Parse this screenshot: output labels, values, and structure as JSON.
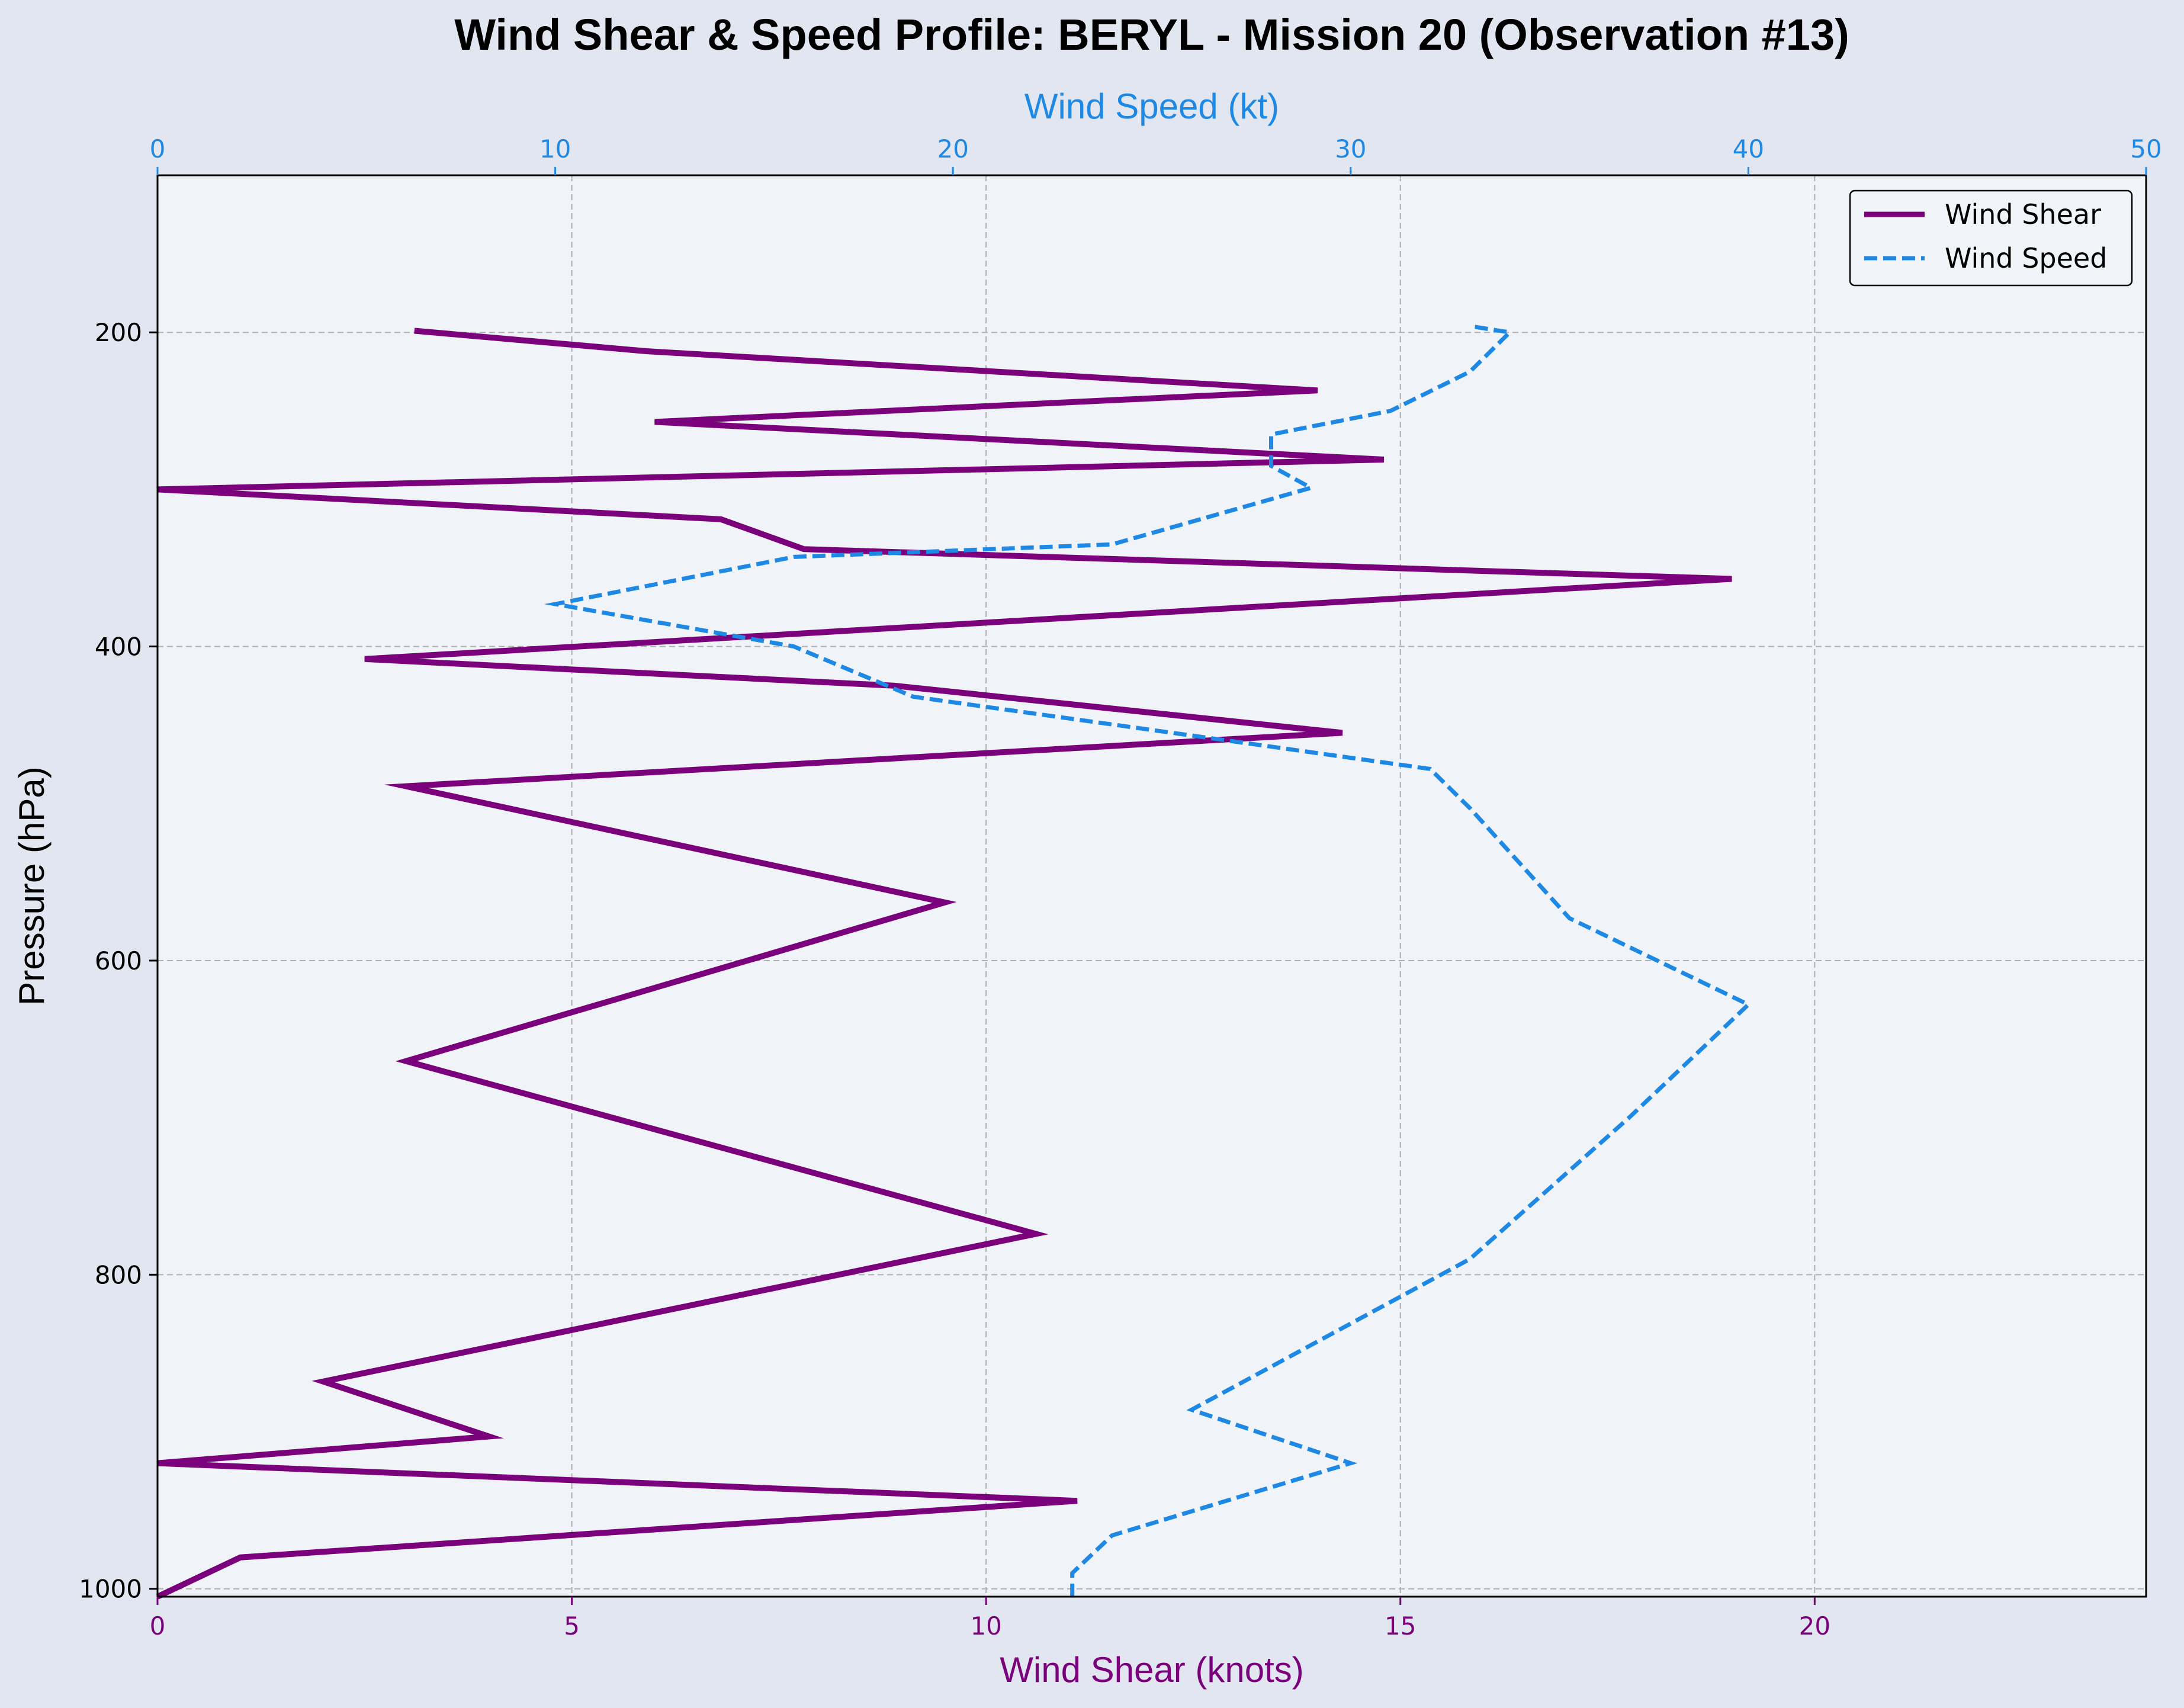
{
  "chart_data": {
    "type": "line",
    "title": "Wind Shear & Speed Profile: BERYL - Mission 20 (Observation #13)",
    "xlabel_bottom": "Wind Shear (knots)",
    "xlabel_top": "Wind Speed (kt)",
    "ylabel": "Pressure (hPa)",
    "xlim_bottom": [
      0,
      24
    ],
    "xlim_top": [
      0,
      50
    ],
    "ylim": [
      1005,
      100
    ],
    "y_inverted": true,
    "grid": true,
    "legend_position": "top-right",
    "x_bottom_ticks": [
      "0",
      "5",
      "10",
      "15",
      "20"
    ],
    "x_top_ticks": [
      "0",
      "10",
      "20",
      "30",
      "40",
      "50"
    ],
    "y_ticks": [
      "200",
      "400",
      "600",
      "800",
      "1000"
    ],
    "colors": {
      "background": "#e1e6f0",
      "plot_background": "#f0f3f8",
      "shear": "#7b007b",
      "speed": "#1e88e5",
      "grid": "#b0b0b0"
    },
    "series": [
      {
        "name": "Wind Shear",
        "axis": "bottom",
        "style": "solid",
        "points": [
          {
            "x": 0.0,
            "y": 1005
          },
          {
            "x": 1.0,
            "y": 980
          },
          {
            "x": 11.1,
            "y": 944
          },
          {
            "x": 0.0,
            "y": 920
          },
          {
            "x": 4.0,
            "y": 903
          },
          {
            "x": 2.0,
            "y": 868
          },
          {
            "x": 10.6,
            "y": 774
          },
          {
            "x": 3.0,
            "y": 664
          },
          {
            "x": 9.5,
            "y": 563
          },
          {
            "x": 3.0,
            "y": 489
          },
          {
            "x": 14.3,
            "y": 455
          },
          {
            "x": 8.9,
            "y": 425
          },
          {
            "x": 2.5,
            "y": 408
          },
          {
            "x": 19.0,
            "y": 357
          },
          {
            "x": 7.8,
            "y": 338
          },
          {
            "x": 6.8,
            "y": 319
          },
          {
            "x": 0.0,
            "y": 300
          },
          {
            "x": 14.8,
            "y": 281
          },
          {
            "x": 6.0,
            "y": 257
          },
          {
            "x": 14.0,
            "y": 237
          },
          {
            "x": 5.9,
            "y": 212
          },
          {
            "x": 3.1,
            "y": 199
          }
        ]
      },
      {
        "name": "Wind Speed",
        "axis": "top",
        "style": "dashed",
        "points": [
          {
            "x": 23.0,
            "y": 1005
          },
          {
            "x": 23.0,
            "y": 990
          },
          {
            "x": 24.0,
            "y": 966
          },
          {
            "x": 30.0,
            "y": 920
          },
          {
            "x": 26.0,
            "y": 886
          },
          {
            "x": 33.0,
            "y": 790
          },
          {
            "x": 37.0,
            "y": 700
          },
          {
            "x": 40.0,
            "y": 628
          },
          {
            "x": 35.5,
            "y": 573
          },
          {
            "x": 33.0,
            "y": 503
          },
          {
            "x": 32.0,
            "y": 478
          },
          {
            "x": 27.5,
            "y": 462
          },
          {
            "x": 19.0,
            "y": 432
          },
          {
            "x": 16.0,
            "y": 400
          },
          {
            "x": 10.0,
            "y": 373
          },
          {
            "x": 16.0,
            "y": 343
          },
          {
            "x": 24.0,
            "y": 335
          },
          {
            "x": 29.0,
            "y": 299
          },
          {
            "x": 28.0,
            "y": 285
          },
          {
            "x": 28.0,
            "y": 265
          },
          {
            "x": 31.0,
            "y": 250
          },
          {
            "x": 33.0,
            "y": 225
          },
          {
            "x": 34.0,
            "y": 200
          },
          {
            "x": 33.0,
            "y": 196
          }
        ]
      }
    ]
  }
}
